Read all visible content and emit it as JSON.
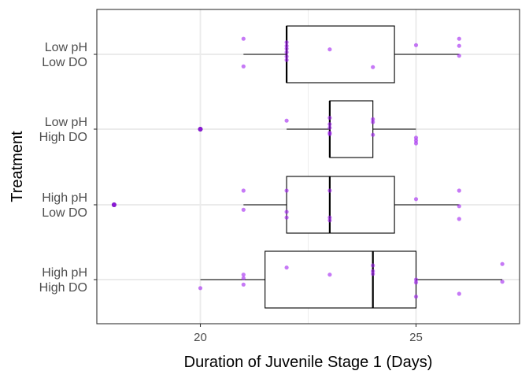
{
  "chart_data": {
    "type": "boxplot",
    "orientation": "horizontal",
    "xlabel": "Duration of Juvenile Stage 1 (Days)",
    "ylabel": "Treatment",
    "xlim": [
      17.6,
      27.4
    ],
    "x_ticks": [
      20,
      25
    ],
    "grid": true,
    "legend": "none",
    "colors": {
      "points": "#a020f0",
      "outliers": "#6a0dad",
      "box_stroke": "#000000",
      "grid": "#ebebeb",
      "panel_border": "#333333",
      "text": "#4d4d4d",
      "axis_title": "#000000"
    },
    "groups": [
      {
        "label_lines": [
          "Low pH",
          "Low DO"
        ],
        "box": {
          "whisker_low": 21,
          "q1": 22,
          "median": 22,
          "q3": 24.5,
          "whisker_high": 26
        },
        "outliers": [],
        "points": [
          {
            "x": 21,
            "dy": -0.22
          },
          {
            "x": 21,
            "dy": 0.17
          },
          {
            "x": 22,
            "dy": -0.17
          },
          {
            "x": 22,
            "dy": -0.12
          },
          {
            "x": 22,
            "dy": -0.08
          },
          {
            "x": 22,
            "dy": -0.03
          },
          {
            "x": 22,
            "dy": 0.03
          },
          {
            "x": 22,
            "dy": 0.08
          },
          {
            "x": 23,
            "dy": -0.07
          },
          {
            "x": 24,
            "dy": 0.18
          },
          {
            "x": 25,
            "dy": -0.13
          },
          {
            "x": 26,
            "dy": -0.22
          },
          {
            "x": 26,
            "dy": -0.12
          },
          {
            "x": 26,
            "dy": 0.02
          }
        ]
      },
      {
        "label_lines": [
          "Low pH",
          "High DO"
        ],
        "box": {
          "whisker_low": 22,
          "q1": 23,
          "median": 23,
          "q3": 24,
          "whisker_high": 25
        },
        "outliers": [
          20
        ],
        "points": [
          {
            "x": 20,
            "dy": 0.0
          },
          {
            "x": 22,
            "dy": -0.12
          },
          {
            "x": 23,
            "dy": -0.16
          },
          {
            "x": 23,
            "dy": -0.07
          },
          {
            "x": 23,
            "dy": -0.02
          },
          {
            "x": 23,
            "dy": 0.05
          },
          {
            "x": 23,
            "dy": 0.07
          },
          {
            "x": 24,
            "dy": -0.14
          },
          {
            "x": 24,
            "dy": -0.1
          },
          {
            "x": 24,
            "dy": 0.08
          },
          {
            "x": 25,
            "dy": 0.12
          },
          {
            "x": 25,
            "dy": 0.16
          },
          {
            "x": 25,
            "dy": 0.2
          }
        ]
      },
      {
        "label_lines": [
          "High pH",
          "Low DO"
        ],
        "box": {
          "whisker_low": 21,
          "q1": 22,
          "median": 23,
          "q3": 24.5,
          "whisker_high": 26
        },
        "outliers": [
          18
        ],
        "points": [
          {
            "x": 18,
            "dy": 0.0
          },
          {
            "x": 21,
            "dy": -0.2
          },
          {
            "x": 21,
            "dy": 0.07
          },
          {
            "x": 22,
            "dy": -0.2
          },
          {
            "x": 22,
            "dy": 0.1
          },
          {
            "x": 22,
            "dy": 0.18
          },
          {
            "x": 23,
            "dy": -0.2
          },
          {
            "x": 23,
            "dy": 0.18
          },
          {
            "x": 23,
            "dy": 0.22
          },
          {
            "x": 25,
            "dy": -0.08
          },
          {
            "x": 26,
            "dy": -0.2
          },
          {
            "x": 26,
            "dy": 0.02
          },
          {
            "x": 26,
            "dy": 0.2
          }
        ]
      },
      {
        "label_lines": [
          "High pH",
          "High DO"
        ],
        "box": {
          "whisker_low": 20,
          "q1": 21.5,
          "median": 24,
          "q3": 25,
          "whisker_high": 27
        },
        "outliers": [],
        "points": [
          {
            "x": 20,
            "dy": 0.12
          },
          {
            "x": 21,
            "dy": -0.07
          },
          {
            "x": 21,
            "dy": 0.07
          },
          {
            "x": 21,
            "dy": -0.02
          },
          {
            "x": 22,
            "dy": -0.17
          },
          {
            "x": 23,
            "dy": -0.07
          },
          {
            "x": 24,
            "dy": -0.2
          },
          {
            "x": 24,
            "dy": -0.12
          },
          {
            "x": 24,
            "dy": -0.08
          },
          {
            "x": 25,
            "dy": 0.0
          },
          {
            "x": 25,
            "dy": 0.04
          },
          {
            "x": 25,
            "dy": 0.24
          },
          {
            "x": 26,
            "dy": 0.2
          },
          {
            "x": 27,
            "dy": -0.22
          },
          {
            "x": 27,
            "dy": 0.03
          }
        ]
      }
    ]
  }
}
